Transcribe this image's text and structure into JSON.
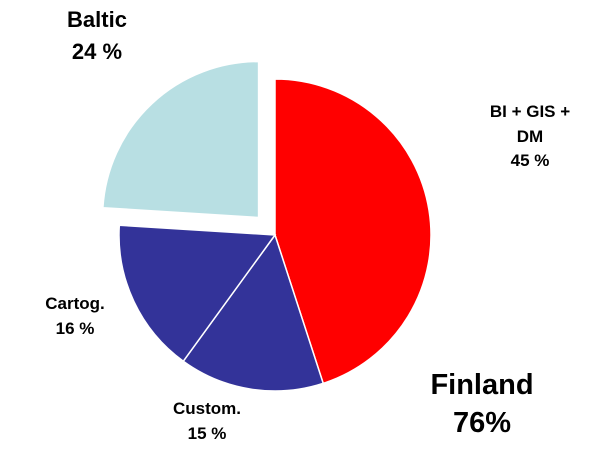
{
  "chart_data": {
    "type": "pie",
    "categories": [
      "BI + GIS + DM",
      "Custom.",
      "Cartog.",
      "Baltic"
    ],
    "values": [
      45,
      15,
      16,
      24
    ],
    "value_labels": [
      "45 %",
      "15 %",
      "16 %",
      "24 %"
    ],
    "colors": [
      "#ff0000",
      "#333399",
      "#333399",
      "#b8dfe3"
    ],
    "explode": [
      false,
      false,
      false,
      true
    ],
    "annotations": [
      "Finland 76%"
    ]
  }
}
